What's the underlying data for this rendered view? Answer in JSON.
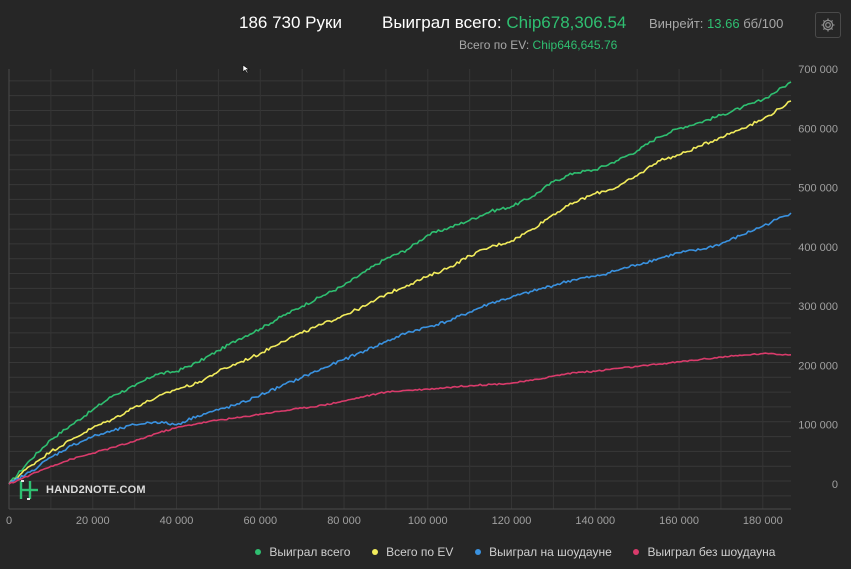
{
  "header": {
    "hands": "186 730 Руки",
    "won_label": "Выиграл всего:",
    "won_value": "Chip678,306.54",
    "winrate_label": "Винрейт:",
    "winrate_value": "13.66",
    "winrate_unit": "бб/100",
    "ev_label": "Всего по EV:",
    "ev_value": "Chip646,645.76"
  },
  "logo_text": "HAND2NOTE.COM",
  "colors": {
    "green": "#2fbf71",
    "yellow": "#f2ec5c",
    "blue": "#3a92e0",
    "pink": "#d93b6b"
  },
  "chart_data": {
    "type": "line",
    "title": "",
    "xlabel": "",
    "ylabel": "",
    "xlim": [
      0,
      186730
    ],
    "ylim": [
      -20000,
      700000
    ],
    "x_ticks": [
      0,
      20000,
      40000,
      60000,
      80000,
      100000,
      120000,
      140000,
      160000,
      180000
    ],
    "x_tick_labels": [
      "0",
      "20 000",
      "40 000",
      "60 000",
      "80 000",
      "100 000",
      "120 000",
      "140 000",
      "160 000",
      "180 000"
    ],
    "y_ticks": [
      0,
      100000,
      200000,
      300000,
      400000,
      500000,
      600000,
      700000
    ],
    "y_tick_labels": [
      "0",
      "100 000",
      "200 000",
      "300 000",
      "400 000",
      "500 000",
      "600 000",
      "700 000"
    ],
    "grid": true,
    "legend_position": "bottom",
    "series": [
      {
        "name": "Выиграл всего",
        "color": "#2fbf71",
        "x": [
          0,
          5000,
          10000,
          15000,
          20000,
          25000,
          30000,
          35000,
          40000,
          45000,
          50000,
          55000,
          60000,
          65000,
          70000,
          75000,
          80000,
          85000,
          90000,
          95000,
          100000,
          105000,
          110000,
          115000,
          120000,
          125000,
          130000,
          135000,
          140000,
          145000,
          150000,
          155000,
          160000,
          165000,
          170000,
          175000,
          180000,
          186730
        ],
        "y": [
          0,
          40000,
          75000,
          100000,
          125000,
          150000,
          165000,
          185000,
          190000,
          205000,
          225000,
          245000,
          262000,
          282000,
          300000,
          318000,
          335000,
          358000,
          380000,
          395000,
          420000,
          432000,
          445000,
          460000,
          468000,
          485000,
          510000,
          525000,
          530000,
          545000,
          562000,
          585000,
          600000,
          610000,
          622000,
          635000,
          648000,
          678000
        ]
      },
      {
        "name": "Всего по EV",
        "color": "#f2ec5c",
        "x": [
          0,
          5000,
          10000,
          15000,
          20000,
          25000,
          30000,
          35000,
          40000,
          45000,
          50000,
          55000,
          60000,
          65000,
          70000,
          75000,
          80000,
          85000,
          90000,
          95000,
          100000,
          105000,
          110000,
          115000,
          120000,
          125000,
          130000,
          135000,
          140000,
          145000,
          150000,
          155000,
          160000,
          165000,
          170000,
          175000,
          180000,
          186730
        ],
        "y": [
          0,
          30000,
          55000,
          75000,
          95000,
          110000,
          130000,
          145000,
          160000,
          170000,
          190000,
          205000,
          220000,
          240000,
          255000,
          270000,
          285000,
          300000,
          320000,
          335000,
          350000,
          365000,
          385000,
          400000,
          410000,
          430000,
          455000,
          475000,
          490000,
          500000,
          520000,
          545000,
          555000,
          570000,
          585000,
          600000,
          615000,
          646000
        ]
      },
      {
        "name": "Выиграл на шоудауне",
        "color": "#3a92e0",
        "x": [
          0,
          5000,
          10000,
          15000,
          20000,
          25000,
          30000,
          35000,
          40000,
          45000,
          50000,
          55000,
          60000,
          65000,
          70000,
          75000,
          80000,
          85000,
          90000,
          95000,
          100000,
          105000,
          110000,
          115000,
          120000,
          125000,
          130000,
          135000,
          140000,
          145000,
          150000,
          155000,
          160000,
          165000,
          170000,
          175000,
          180000,
          186730
        ],
        "y": [
          0,
          20000,
          45000,
          65000,
          80000,
          90000,
          100000,
          105000,
          100000,
          115000,
          125000,
          135000,
          150000,
          165000,
          180000,
          195000,
          210000,
          225000,
          240000,
          255000,
          265000,
          275000,
          290000,
          305000,
          315000,
          325000,
          335000,
          345000,
          350000,
          360000,
          370000,
          380000,
          390000,
          395000,
          405000,
          420000,
          435000,
          457000
        ]
      },
      {
        "name": "Выиграл без шоудауна",
        "color": "#d93b6b",
        "x": [
          0,
          5000,
          10000,
          15000,
          20000,
          25000,
          30000,
          35000,
          40000,
          45000,
          50000,
          55000,
          60000,
          65000,
          70000,
          75000,
          80000,
          85000,
          90000,
          95000,
          100000,
          105000,
          110000,
          115000,
          120000,
          125000,
          130000,
          135000,
          140000,
          145000,
          150000,
          155000,
          160000,
          165000,
          170000,
          175000,
          180000,
          186730
        ],
        "y": [
          0,
          15000,
          30000,
          42000,
          52000,
          62000,
          72000,
          85000,
          95000,
          102000,
          108000,
          112000,
          118000,
          123000,
          128000,
          133000,
          140000,
          148000,
          155000,
          158000,
          160000,
          163000,
          166000,
          168000,
          170000,
          175000,
          182000,
          188000,
          190000,
          195000,
          198000,
          202000,
          206000,
          210000,
          214000,
          217000,
          220000,
          218000
        ]
      }
    ]
  }
}
